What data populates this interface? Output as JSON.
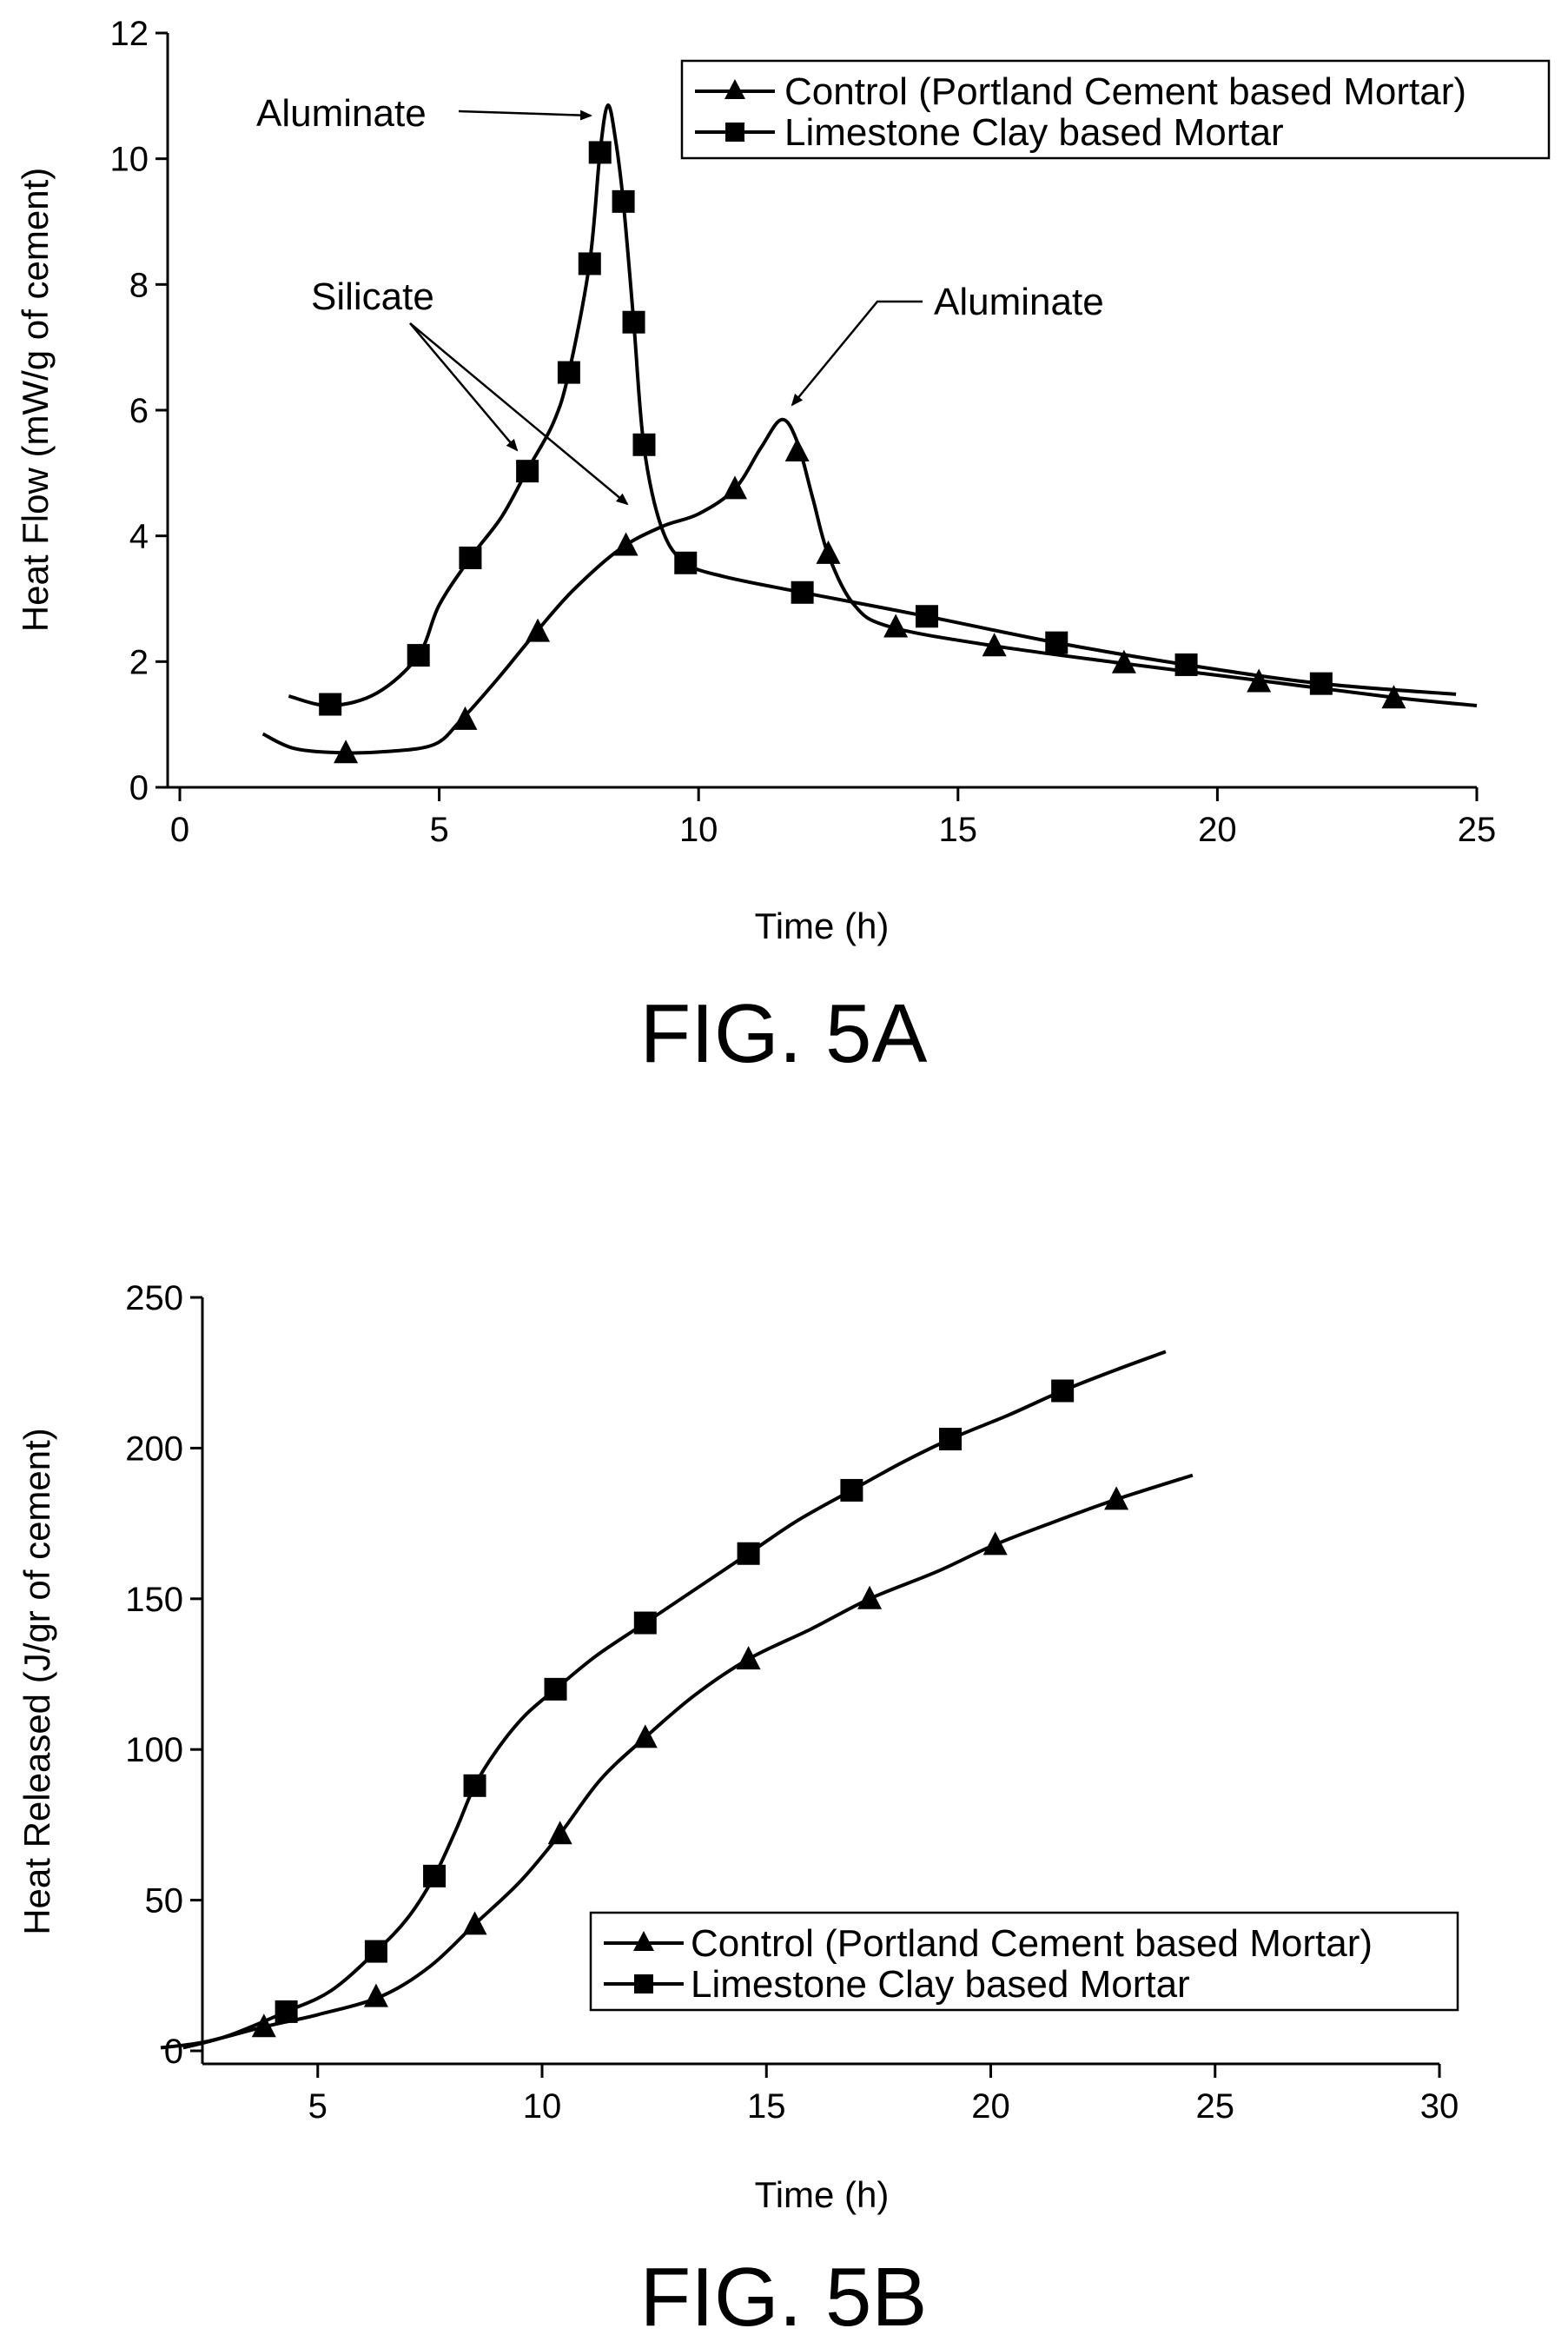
{
  "figures": [
    {
      "caption": "FIG. 5A",
      "chart_data": {
        "type": "line",
        "xlabel": "Time (h)",
        "ylabel": "Heat Flow (mW/g of cement)",
        "xlim": [
          0,
          25
        ],
        "ylim": [
          0,
          12
        ],
        "xticks": [
          0,
          5,
          10,
          15,
          20,
          25
        ],
        "yticks": [
          0,
          2,
          4,
          6,
          8,
          10,
          12
        ],
        "legend_position": "top-right",
        "grid": false,
        "annotations": [
          "Aluminate",
          "Silicate",
          "Aluminate"
        ],
        "series": [
          {
            "name": "Control (Portland Cement based Mortar)",
            "marker": "triangle",
            "curve": [
              [
                1.6,
                0.85
              ],
              [
                2.2,
                0.62
              ],
              [
                3.1,
                0.55
              ],
              [
                4.0,
                0.57
              ],
              [
                4.9,
                0.68
              ],
              [
                5.4,
                1.05
              ],
              [
                6.1,
                1.7
              ],
              [
                6.9,
                2.5
              ],
              [
                7.6,
                3.15
              ],
              [
                8.5,
                3.8
              ],
              [
                9.3,
                4.15
              ],
              [
                10.0,
                4.35
              ],
              [
                10.7,
                4.75
              ],
              [
                11.2,
                5.4
              ],
              [
                11.6,
                5.85
              ],
              [
                11.9,
                5.5
              ],
              [
                12.2,
                4.6
              ],
              [
                12.5,
                3.7
              ],
              [
                13.0,
                2.9
              ],
              [
                13.7,
                2.55
              ],
              [
                15.7,
                2.25
              ],
              [
                18.1,
                1.98
              ],
              [
                20.8,
                1.7
              ],
              [
                23.4,
                1.43
              ],
              [
                25.0,
                1.3
              ]
            ],
            "markers": [
              [
                3.2,
                0.55
              ],
              [
                5.5,
                1.08
              ],
              [
                6.9,
                2.48
              ],
              [
                8.6,
                3.85
              ],
              [
                10.7,
                4.75
              ],
              [
                11.9,
                5.35
              ],
              [
                12.5,
                3.72
              ],
              [
                13.8,
                2.55
              ],
              [
                15.7,
                2.25
              ],
              [
                18.2,
                1.98
              ],
              [
                20.8,
                1.68
              ],
              [
                23.4,
                1.42
              ]
            ]
          },
          {
            "name": "Limestone Clay based Mortar",
            "marker": "square",
            "curve": [
              [
                2.1,
                1.45
              ],
              [
                2.9,
                1.3
              ],
              [
                3.8,
                1.5
              ],
              [
                4.6,
                2.1
              ],
              [
                5.0,
                2.9
              ],
              [
                5.6,
                3.65
              ],
              [
                6.2,
                4.3
              ],
              [
                6.7,
                5.05
              ],
              [
                7.2,
                5.8
              ],
              [
                7.5,
                6.6
              ],
              [
                7.9,
                8.35
              ],
              [
                8.1,
                10.1
              ],
              [
                8.25,
                10.85
              ],
              [
                8.4,
                10.3
              ],
              [
                8.55,
                9.3
              ],
              [
                8.75,
                7.4
              ],
              [
                8.95,
                5.4
              ],
              [
                9.3,
                4.1
              ],
              [
                9.75,
                3.57
              ],
              [
                10.5,
                3.35
              ],
              [
                12.0,
                3.1
              ],
              [
                14.4,
                2.72
              ],
              [
                16.9,
                2.3
              ],
              [
                19.4,
                1.95
              ],
              [
                22.0,
                1.65
              ],
              [
                24.6,
                1.48
              ]
            ],
            "markers": [
              [
                2.9,
                1.32
              ],
              [
                4.6,
                2.1
              ],
              [
                5.6,
                3.65
              ],
              [
                6.7,
                5.03
              ],
              [
                7.5,
                6.6
              ],
              [
                7.9,
                8.33
              ],
              [
                8.1,
                10.1
              ],
              [
                8.55,
                9.32
              ],
              [
                8.75,
                7.4
              ],
              [
                8.95,
                5.45
              ],
              [
                9.75,
                3.57
              ],
              [
                12.0,
                3.1
              ],
              [
                14.4,
                2.72
              ],
              [
                16.9,
                2.3
              ],
              [
                19.4,
                1.95
              ],
              [
                22.0,
                1.65
              ]
            ]
          }
        ]
      }
    },
    {
      "caption": "FIG. 5B",
      "chart_data": {
        "type": "line",
        "xlabel": "Time (h)",
        "ylabel": "Heat Released (J/gr of cement)",
        "xlim": [
          1.5,
          30
        ],
        "ylim": [
          0,
          250
        ],
        "xticks": [
          5,
          10,
          15,
          20,
          25,
          30
        ],
        "yticks": [
          0,
          50,
          100,
          150,
          200,
          250
        ],
        "legend_position": "bottom-right",
        "grid": false,
        "series": [
          {
            "name": "Control (Portland Cement based Mortar)",
            "marker": "triangle",
            "curve": [
              [
                1.5,
                1
              ],
              [
                2.5,
                3
              ],
              [
                3.8,
                8
              ],
              [
                5.0,
                12
              ],
              [
                6.4,
                18
              ],
              [
                7.5,
                28
              ],
              [
                8.5,
                42
              ],
              [
                9.5,
                56
              ],
              [
                10.4,
                72
              ],
              [
                11.3,
                90
              ],
              [
                12.3,
                104
              ],
              [
                13.4,
                118
              ],
              [
                14.6,
                130
              ],
              [
                16.0,
                140
              ],
              [
                17.3,
                150
              ],
              [
                18.8,
                159
              ],
              [
                20.1,
                168
              ],
              [
                21.5,
                176
              ],
              [
                22.8,
                183
              ],
              [
                24.5,
                191
              ]
            ],
            "markers": [
              [
                3.8,
                8
              ],
              [
                6.3,
                18
              ],
              [
                8.5,
                42
              ],
              [
                10.4,
                72
              ],
              [
                12.3,
                104
              ],
              [
                14.6,
                130
              ],
              [
                17.3,
                150
              ],
              [
                20.1,
                168
              ],
              [
                22.8,
                183
              ]
            ]
          },
          {
            "name": "Limestone Clay based Mortar",
            "marker": "square",
            "curve": [
              [
                2.0,
                1
              ],
              [
                3.0,
                5
              ],
              [
                4.3,
                13
              ],
              [
                5.3,
                20
              ],
              [
                6.3,
                33
              ],
              [
                7.0,
                44
              ],
              [
                7.6,
                58
              ],
              [
                8.1,
                74
              ],
              [
                8.5,
                88
              ],
              [
                9.0,
                100
              ],
              [
                9.6,
                111
              ],
              [
                10.3,
                120
              ],
              [
                11.2,
                131
              ],
              [
                12.3,
                142
              ],
              [
                13.4,
                153
              ],
              [
                14.6,
                165
              ],
              [
                15.7,
                176
              ],
              [
                16.9,
                186
              ],
              [
                18.0,
                195
              ],
              [
                19.1,
                203
              ],
              [
                20.4,
                211
              ],
              [
                21.6,
                219
              ],
              [
                22.8,
                226
              ],
              [
                23.9,
                232
              ]
            ],
            "markers": [
              [
                4.3,
                13
              ],
              [
                6.3,
                33
              ],
              [
                7.6,
                58
              ],
              [
                8.5,
                88
              ],
              [
                10.3,
                120
              ],
              [
                12.3,
                142
              ],
              [
                14.6,
                165
              ],
              [
                16.9,
                186
              ],
              [
                19.1,
                203
              ],
              [
                21.6,
                219
              ]
            ]
          }
        ]
      }
    }
  ]
}
